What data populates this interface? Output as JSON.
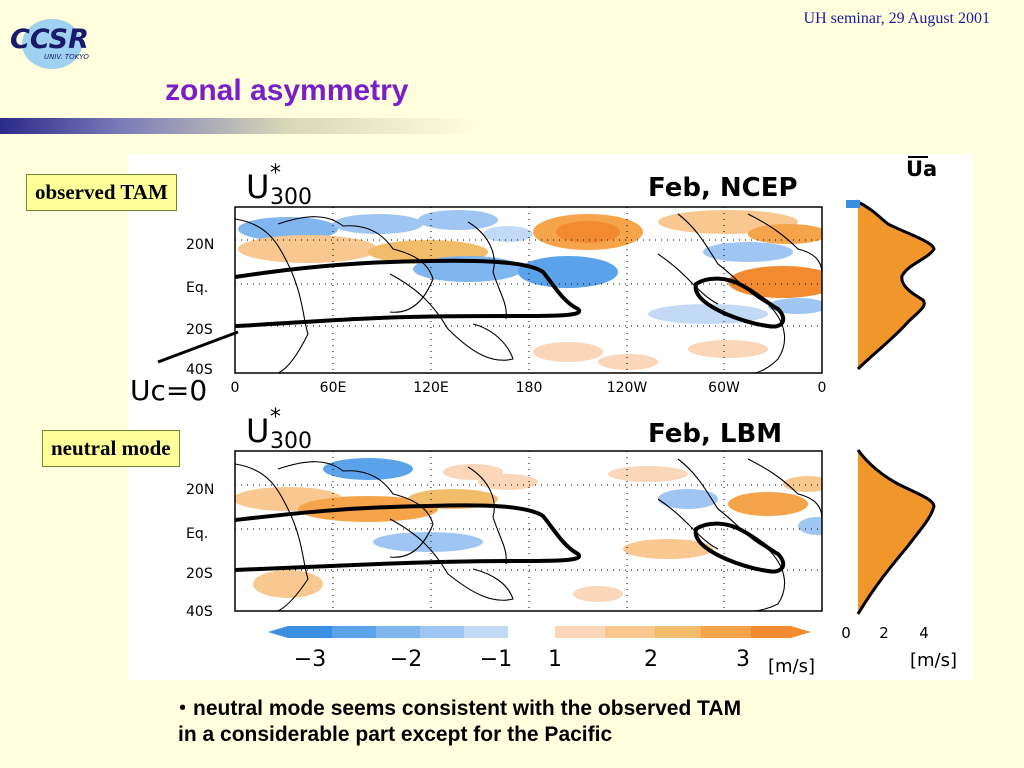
{
  "header": {
    "logo_text": "CCSR",
    "logo_subtext": "UNIV. TOKYO",
    "seminar": "UH seminar, 29 August 2001"
  },
  "slide": {
    "title": "zonal asymmetry"
  },
  "labels": {
    "observed": "observed TAM",
    "neutral": "neutral mode",
    "ua": "Ua",
    "uc": "Uc=0"
  },
  "panels": {
    "top": {
      "var": "U",
      "star": "*",
      "level": "300",
      "tag": "Feb,  NCEP"
    },
    "bottom": {
      "var": "U",
      "star": "*",
      "level": "300",
      "tag": "Feb,  LBM"
    },
    "lat_ticks": [
      "20N",
      "Eq.",
      "20S",
      "40S"
    ],
    "lon_ticks": [
      "0",
      "60E",
      "120E",
      "180",
      "120W",
      "60W",
      "0"
    ]
  },
  "colorbar": {
    "ticks": [
      "−3",
      "−2",
      "−1",
      "1",
      "2",
      "3"
    ],
    "unit": "[m/s]",
    "negative_colors": [
      "#3a8fe0",
      "#5aa3ea",
      "#7fb6ef",
      "#9fc6f2",
      "#c2daf6"
    ],
    "positive_colors": [
      "#fbd6b8",
      "#f8c890",
      "#f2bd6a",
      "#f5a44a",
      "#f28a30"
    ]
  },
  "profile": {
    "ticks": [
      "0",
      "2",
      "4"
    ],
    "unit": "[m/s]",
    "fill_color": "#f0962a"
  },
  "bullets": [
    "・neutral mode seems consistent with the observed TAM",
    " in a considerable part except for the Pacific"
  ]
}
